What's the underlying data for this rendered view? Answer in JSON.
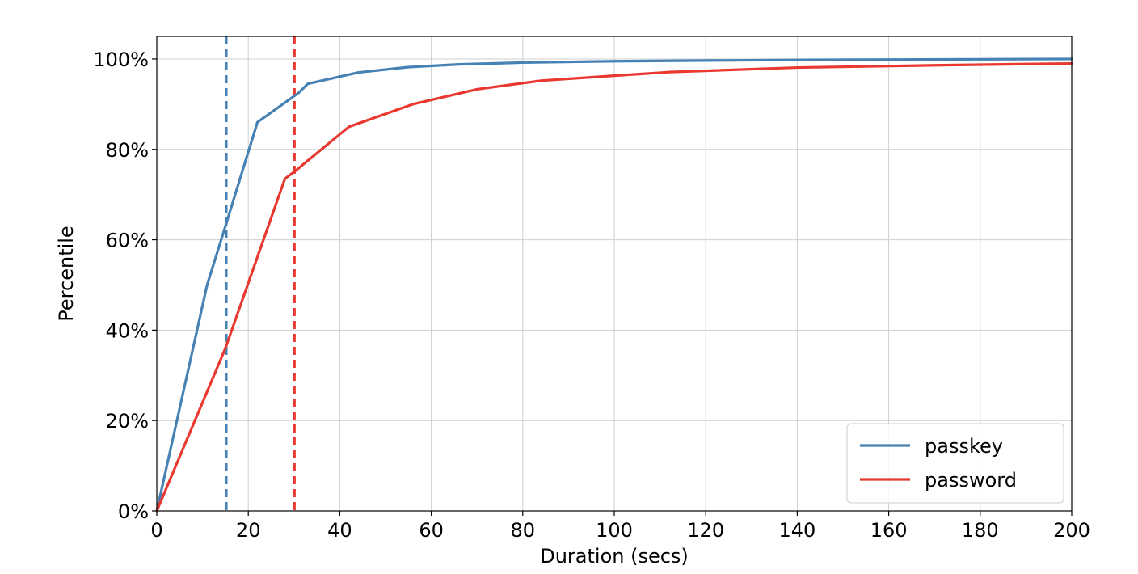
{
  "chart_data": {
    "type": "line",
    "title": "",
    "xlabel": "Duration (secs)",
    "ylabel": "Percentile",
    "xlim": [
      0,
      200
    ],
    "ylim": [
      0,
      105
    ],
    "x_ticks": [
      0,
      20,
      40,
      60,
      80,
      100,
      120,
      140,
      160,
      180,
      200
    ],
    "x_tick_labels": [
      "0",
      "20",
      "40",
      "60",
      "80",
      "100",
      "120",
      "140",
      "160",
      "180",
      "200"
    ],
    "y_ticks": [
      0,
      20,
      40,
      60,
      80,
      100
    ],
    "y_tick_labels": [
      "0%",
      "20%",
      "40%",
      "60%",
      "80%",
      "100%"
    ],
    "grid": true,
    "legend_position": "lower-right",
    "series": [
      {
        "name": "passkey",
        "color": "#4682b4",
        "x": [
          0,
          11,
          15,
          22,
          31,
          33,
          44,
          55,
          66,
          80,
          100,
          140,
          200
        ],
        "y": [
          0,
          50,
          63,
          86,
          92.5,
          94.5,
          97,
          98.2,
          98.8,
          99.2,
          99.5,
          99.8,
          100
        ]
      },
      {
        "name": "password",
        "color": "#e8382f",
        "x": [
          0,
          15,
          28,
          30,
          42,
          56,
          70,
          84,
          100,
          112,
          140,
          170,
          200
        ],
        "y": [
          0,
          36,
          73.5,
          75,
          85,
          90,
          93.3,
          95.2,
          96.3,
          97.1,
          98.1,
          98.6,
          99
        ]
      }
    ],
    "reference_lines": [
      {
        "type": "vertical",
        "x": 15.2,
        "style": "dashed",
        "color": "#4682b4"
      },
      {
        "type": "vertical",
        "x": 30.1,
        "style": "dashed",
        "color": "#e8382f"
      }
    ]
  }
}
